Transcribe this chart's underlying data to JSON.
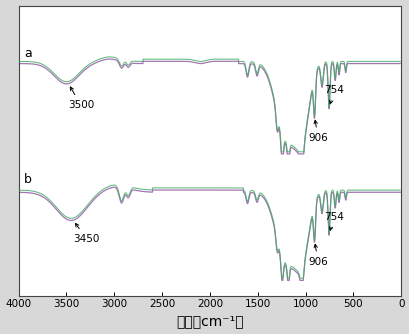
{
  "xlabel": "波数（cm⁻¹）",
  "xlabel_fontsize": 10,
  "x_ticks": [
    4000,
    3500,
    3000,
    2500,
    2000,
    1500,
    1000,
    500,
    0
  ],
  "background_color": "#d8d8d8",
  "plot_bg_color": "#ffffff",
  "label_a": "a",
  "label_b": "b",
  "ann_a_3500": "3500",
  "ann_a_906": "906",
  "ann_a_754": "754",
  "ann_b_3450": "3450",
  "ann_b_906": "906",
  "ann_b_754": "754",
  "line_color_purple": "#9966aa",
  "line_color_green": "#44aa66"
}
